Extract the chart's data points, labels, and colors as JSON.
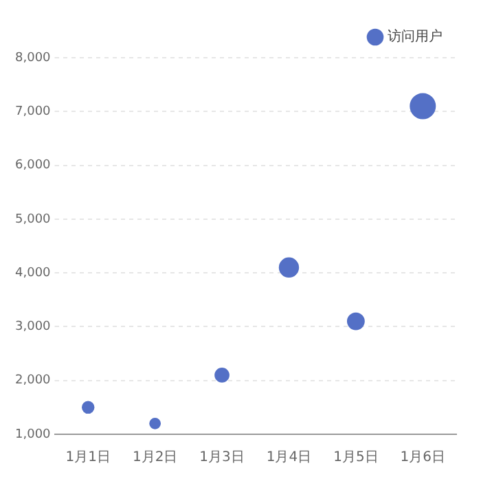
{
  "chart_data": {
    "type": "bubble",
    "categories": [
      "1月1日",
      "1月2日",
      "1月3日",
      "1月4日",
      "1月5日",
      "1月6日"
    ],
    "series": [
      {
        "name": "访问用户",
        "color": "#5470c6",
        "values": [
          1500,
          1200,
          2100,
          4100,
          3100,
          7100
        ],
        "sizes": [
          0.21,
          0.17,
          0.3,
          0.58,
          0.44,
          1
        ]
      }
    ],
    "ylim": [
      1000,
      8000
    ],
    "yticks": [
      {
        "value": 1000,
        "label": "1,000"
      },
      {
        "value": 2000,
        "label": "2,000"
      },
      {
        "value": 3000,
        "label": "3,000"
      },
      {
        "value": 4000,
        "label": "4,000"
      },
      {
        "value": 5000,
        "label": "5,000"
      },
      {
        "value": 6000,
        "label": "6,000"
      },
      {
        "value": 7000,
        "label": "7,000"
      },
      {
        "value": 8000,
        "label": "8,000"
      }
    ],
    "grid": "y",
    "legend": "top right"
  }
}
